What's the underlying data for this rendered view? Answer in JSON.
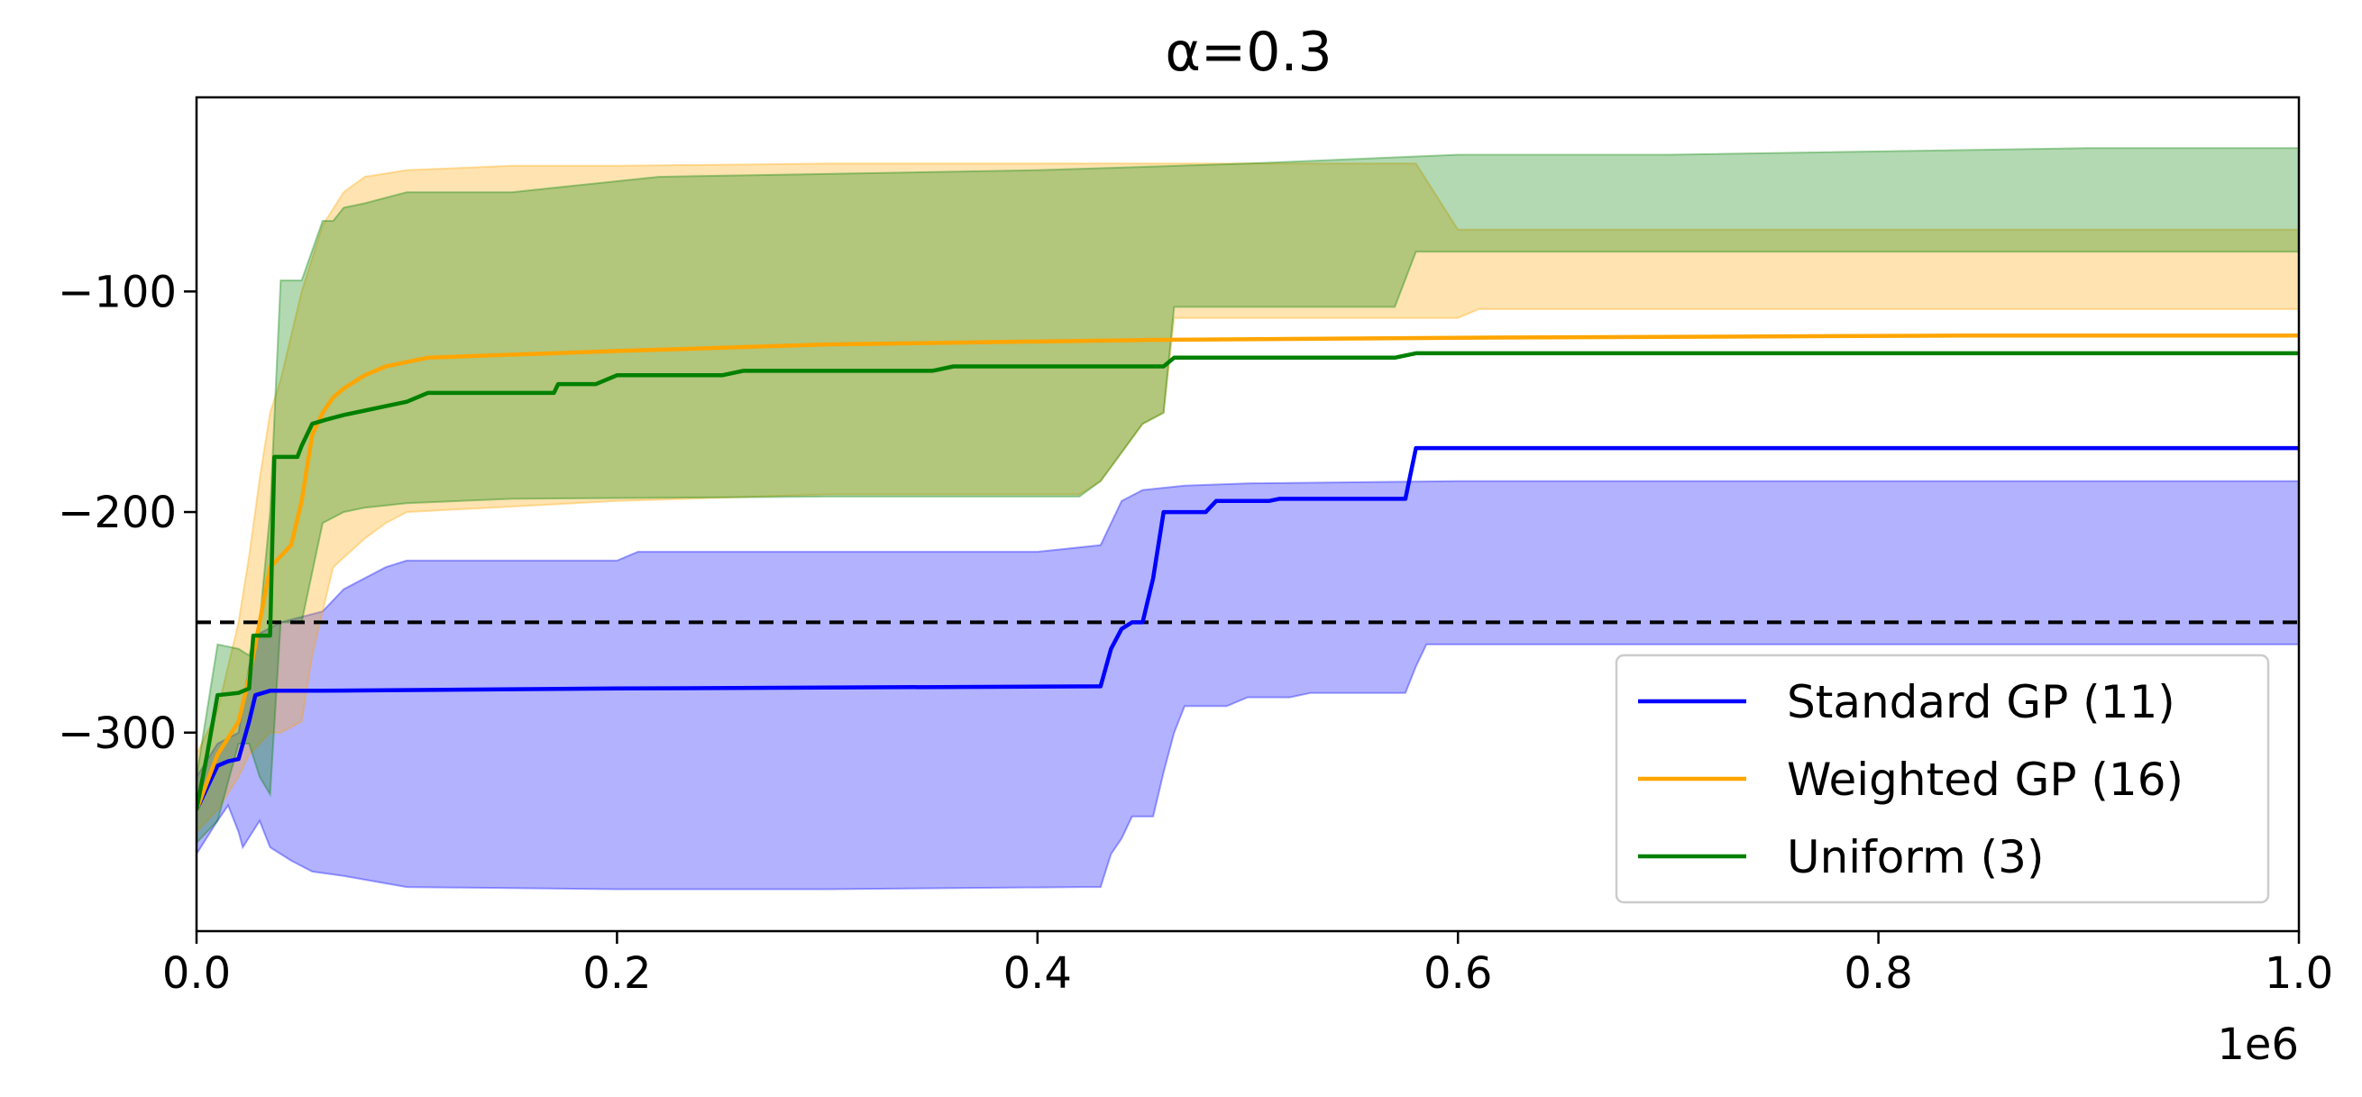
{
  "chart_data": {
    "type": "line",
    "title": "α=0.3",
    "xlabel": "",
    "ylabel": "",
    "x_offset_label": "1e6",
    "xlim": [
      0.0,
      1.0
    ],
    "ylim": [
      -390,
      -12
    ],
    "x_ticks": [
      0.0,
      0.2,
      0.4,
      0.6,
      0.8,
      1.0
    ],
    "x_tick_labels": [
      "0.0",
      "0.2",
      "0.4",
      "0.6",
      "0.8",
      "1.0"
    ],
    "y_ticks": [
      -100,
      -200,
      -300
    ],
    "y_tick_labels": [
      "−100",
      "−200",
      "−300"
    ],
    "grid": false,
    "legend_position": "lower-right",
    "reference_line": {
      "y": -250,
      "style": "dashed",
      "color": "#000000"
    },
    "series": [
      {
        "name": "Standard GP (11)",
        "color": "#0000ff",
        "mean": [
          [
            0.0,
            -335
          ],
          [
            0.01,
            -315
          ],
          [
            0.015,
            -313
          ],
          [
            0.02,
            -312
          ],
          [
            0.025,
            -295
          ],
          [
            0.028,
            -283
          ],
          [
            0.035,
            -281
          ],
          [
            0.06,
            -281
          ],
          [
            0.2,
            -280
          ],
          [
            0.43,
            -279
          ],
          [
            0.435,
            -262
          ],
          [
            0.44,
            -253
          ],
          [
            0.445,
            -250
          ],
          [
            0.45,
            -250
          ],
          [
            0.455,
            -230
          ],
          [
            0.46,
            -200
          ],
          [
            0.48,
            -200
          ],
          [
            0.485,
            -195
          ],
          [
            0.51,
            -195
          ],
          [
            0.515,
            -194
          ],
          [
            0.575,
            -194
          ],
          [
            0.58,
            -171
          ],
          [
            1.0,
            -171
          ]
        ],
        "upper": [
          [
            0.0,
            -320
          ],
          [
            0.01,
            -305
          ],
          [
            0.02,
            -300
          ],
          [
            0.025,
            -270
          ],
          [
            0.03,
            -255
          ],
          [
            0.04,
            -250
          ],
          [
            0.06,
            -245
          ],
          [
            0.07,
            -235
          ],
          [
            0.09,
            -225
          ],
          [
            0.1,
            -222
          ],
          [
            0.2,
            -222
          ],
          [
            0.21,
            -218
          ],
          [
            0.4,
            -218
          ],
          [
            0.43,
            -215
          ],
          [
            0.44,
            -195
          ],
          [
            0.45,
            -190
          ],
          [
            0.47,
            -188
          ],
          [
            0.5,
            -187
          ],
          [
            0.6,
            -186
          ],
          [
            0.7,
            -186
          ],
          [
            1.0,
            -186
          ]
        ],
        "lower": [
          [
            0.0,
            -355
          ],
          [
            0.01,
            -340
          ],
          [
            0.015,
            -333
          ],
          [
            0.02,
            -345
          ],
          [
            0.022,
            -352
          ],
          [
            0.03,
            -340
          ],
          [
            0.035,
            -352
          ],
          [
            0.045,
            -358
          ],
          [
            0.055,
            -363
          ],
          [
            0.07,
            -365
          ],
          [
            0.1,
            -370
          ],
          [
            0.2,
            -371
          ],
          [
            0.3,
            -371
          ],
          [
            0.42,
            -370
          ],
          [
            0.43,
            -370
          ],
          [
            0.435,
            -355
          ],
          [
            0.44,
            -348
          ],
          [
            0.445,
            -338
          ],
          [
            0.455,
            -338
          ],
          [
            0.46,
            -318
          ],
          [
            0.465,
            -300
          ],
          [
            0.47,
            -288
          ],
          [
            0.49,
            -288
          ],
          [
            0.5,
            -284
          ],
          [
            0.52,
            -284
          ],
          [
            0.53,
            -282
          ],
          [
            0.575,
            -282
          ],
          [
            0.58,
            -270
          ],
          [
            0.585,
            -260
          ],
          [
            1.0,
            -260
          ]
        ]
      },
      {
        "name": "Weighted GP (16)",
        "color": "#ffa500",
        "mean": [
          [
            0.0,
            -335
          ],
          [
            0.01,
            -310
          ],
          [
            0.02,
            -295
          ],
          [
            0.025,
            -275
          ],
          [
            0.03,
            -250
          ],
          [
            0.035,
            -225
          ],
          [
            0.04,
            -220
          ],
          [
            0.045,
            -215
          ],
          [
            0.05,
            -195
          ],
          [
            0.055,
            -165
          ],
          [
            0.06,
            -155
          ],
          [
            0.065,
            -148
          ],
          [
            0.07,
            -144
          ],
          [
            0.08,
            -138
          ],
          [
            0.09,
            -134
          ],
          [
            0.1,
            -132
          ],
          [
            0.11,
            -130
          ],
          [
            0.14,
            -129
          ],
          [
            0.2,
            -127
          ],
          [
            0.3,
            -124
          ],
          [
            0.45,
            -122
          ],
          [
            0.6,
            -121
          ],
          [
            0.84,
            -120
          ],
          [
            1.0,
            -120
          ]
        ],
        "upper": [
          [
            0.0,
            -310
          ],
          [
            0.01,
            -290
          ],
          [
            0.02,
            -250
          ],
          [
            0.025,
            -220
          ],
          [
            0.03,
            -185
          ],
          [
            0.035,
            -155
          ],
          [
            0.04,
            -140
          ],
          [
            0.05,
            -100
          ],
          [
            0.06,
            -70
          ],
          [
            0.07,
            -55
          ],
          [
            0.08,
            -48
          ],
          [
            0.1,
            -45
          ],
          [
            0.15,
            -43
          ],
          [
            0.2,
            -43
          ],
          [
            0.3,
            -42
          ],
          [
            0.45,
            -42
          ],
          [
            0.58,
            -42
          ],
          [
            0.6,
            -72
          ],
          [
            1.0,
            -72
          ]
        ],
        "lower": [
          [
            0.0,
            -345
          ],
          [
            0.01,
            -335
          ],
          [
            0.02,
            -320
          ],
          [
            0.025,
            -310
          ],
          [
            0.03,
            -305
          ],
          [
            0.035,
            -300
          ],
          [
            0.04,
            -300
          ],
          [
            0.05,
            -295
          ],
          [
            0.055,
            -265
          ],
          [
            0.06,
            -245
          ],
          [
            0.065,
            -225
          ],
          [
            0.08,
            -212
          ],
          [
            0.09,
            -205
          ],
          [
            0.1,
            -200
          ],
          [
            0.2,
            -195
          ],
          [
            0.3,
            -192
          ],
          [
            0.4,
            -192
          ],
          [
            0.42,
            -192
          ],
          [
            0.43,
            -186
          ],
          [
            0.45,
            -160
          ],
          [
            0.46,
            -155
          ],
          [
            0.465,
            -112
          ],
          [
            0.6,
            -112
          ],
          [
            0.61,
            -108
          ],
          [
            0.7,
            -108
          ],
          [
            1.0,
            -108
          ]
        ]
      },
      {
        "name": "Uniform (3)",
        "color": "#008000",
        "mean": [
          [
            0.0,
            -335
          ],
          [
            0.005,
            -310
          ],
          [
            0.01,
            -283
          ],
          [
            0.02,
            -282
          ],
          [
            0.025,
            -280
          ],
          [
            0.027,
            -256
          ],
          [
            0.035,
            -256
          ],
          [
            0.037,
            -175
          ],
          [
            0.048,
            -175
          ],
          [
            0.05,
            -170
          ],
          [
            0.055,
            -160
          ],
          [
            0.062,
            -158
          ],
          [
            0.07,
            -156
          ],
          [
            0.08,
            -154
          ],
          [
            0.09,
            -152
          ],
          [
            0.1,
            -150
          ],
          [
            0.11,
            -146
          ],
          [
            0.17,
            -146
          ],
          [
            0.172,
            -142
          ],
          [
            0.19,
            -142
          ],
          [
            0.2,
            -138
          ],
          [
            0.25,
            -138
          ],
          [
            0.26,
            -136
          ],
          [
            0.35,
            -136
          ],
          [
            0.36,
            -134
          ],
          [
            0.46,
            -134
          ],
          [
            0.465,
            -130
          ],
          [
            0.57,
            -130
          ],
          [
            0.58,
            -128
          ],
          [
            1.0,
            -128
          ]
        ],
        "upper": [
          [
            0.0,
            -320
          ],
          [
            0.01,
            -260
          ],
          [
            0.02,
            -262
          ],
          [
            0.025,
            -265
          ],
          [
            0.03,
            -250
          ],
          [
            0.035,
            -200
          ],
          [
            0.04,
            -95
          ],
          [
            0.05,
            -95
          ],
          [
            0.06,
            -68
          ],
          [
            0.065,
            -68
          ],
          [
            0.07,
            -62
          ],
          [
            0.08,
            -60
          ],
          [
            0.1,
            -55
          ],
          [
            0.15,
            -55
          ],
          [
            0.2,
            -50
          ],
          [
            0.22,
            -48
          ],
          [
            0.4,
            -45
          ],
          [
            0.5,
            -42
          ],
          [
            0.6,
            -38
          ],
          [
            0.7,
            -38
          ],
          [
            0.9,
            -35
          ],
          [
            1.0,
            -35
          ]
        ],
        "lower": [
          [
            0.0,
            -350
          ],
          [
            0.01,
            -340
          ],
          [
            0.02,
            -305
          ],
          [
            0.025,
            -305
          ],
          [
            0.03,
            -320
          ],
          [
            0.035,
            -328
          ],
          [
            0.04,
            -250
          ],
          [
            0.05,
            -250
          ],
          [
            0.06,
            -205
          ],
          [
            0.07,
            -200
          ],
          [
            0.08,
            -198
          ],
          [
            0.1,
            -196
          ],
          [
            0.15,
            -194
          ],
          [
            0.3,
            -193
          ],
          [
            0.42,
            -193
          ],
          [
            0.43,
            -186
          ],
          [
            0.45,
            -160
          ],
          [
            0.46,
            -155
          ],
          [
            0.465,
            -107
          ],
          [
            0.57,
            -107
          ],
          [
            0.58,
            -82
          ],
          [
            1.0,
            -82
          ]
        ]
      }
    ]
  }
}
